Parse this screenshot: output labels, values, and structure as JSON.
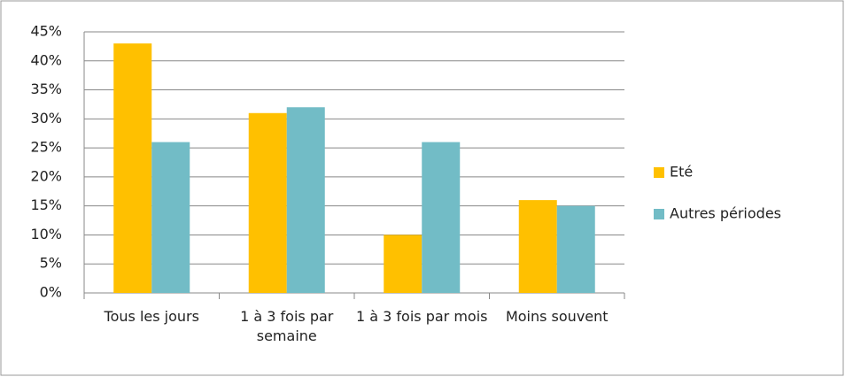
{
  "chart_data": {
    "type": "bar",
    "categories": [
      "Tous les jours",
      "1 à 3 fois par semaine",
      "1 à 3 fois par mois",
      "Moins souvent"
    ],
    "series": [
      {
        "name": "Eté",
        "color": "#ffc000",
        "values": [
          43,
          31,
          10,
          16
        ]
      },
      {
        "name": "Autres périodes",
        "color": "#72bcc6",
        "values": [
          26,
          32,
          26,
          15
        ]
      }
    ],
    "ylim": [
      0,
      45
    ],
    "yticks": [
      {
        "value": 0,
        "label": "0%"
      },
      {
        "value": 5,
        "label": "5%"
      },
      {
        "value": 10,
        "label": "10%"
      },
      {
        "value": 15,
        "label": "15%"
      },
      {
        "value": 20,
        "label": "20%"
      },
      {
        "value": 25,
        "label": "25%"
      },
      {
        "value": 30,
        "label": "30%"
      },
      {
        "value": 35,
        "label": "35%"
      },
      {
        "value": 40,
        "label": "40%"
      },
      {
        "value": 45,
        "label": "45%"
      }
    ],
    "grid": true,
    "legend": "right"
  }
}
